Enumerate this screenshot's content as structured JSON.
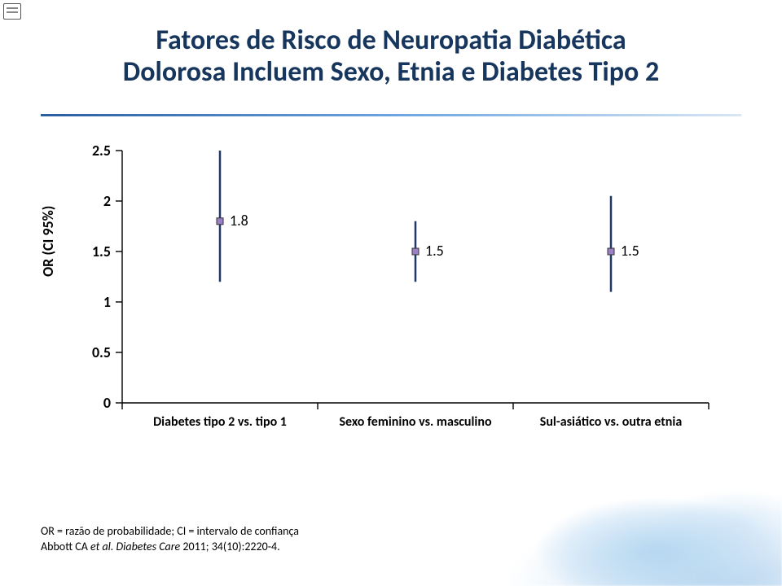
{
  "title": {
    "line1": "Fatores de Risco de Neuropatia Diabética",
    "line2": "Dolorosa Incluem Sexo, Etnia e Diabetes Tipo 2",
    "fontsize": 34,
    "color": "#17365d",
    "weight": "700"
  },
  "chart": {
    "type": "scatter-errorbar",
    "ylabel": "OR (CI 95%)",
    "ylim": [
      0,
      2.5
    ],
    "ytick_step": 0.5,
    "yticks": [
      "0",
      "0.5",
      "1",
      "1.5",
      "2",
      "2.5"
    ],
    "categories": [
      "Diabetes tipo 2 vs. tipo 1",
      "Sexo feminino vs. masculino",
      "Sul-asiático vs. outra etnia"
    ],
    "points": [
      {
        "x": 0,
        "or": 1.8,
        "lo": 1.2,
        "hi": 2.65,
        "label": "1.8"
      },
      {
        "x": 1,
        "or": 1.5,
        "lo": 1.2,
        "hi": 1.8,
        "label": "1.5"
      },
      {
        "x": 2,
        "or": 1.5,
        "lo": 1.1,
        "hi": 2.05,
        "label": "1.5"
      }
    ],
    "marker_color": "#9b7fc7",
    "marker_border": "#333333",
    "marker_size": 8,
    "error_color": "#1f3864",
    "error_width": 2.5,
    "axis_color": "#000000",
    "axis_width": 1.4,
    "tick_len": 8,
    "tick_fontsize": 18,
    "value_fontsize": 18,
    "cat_fontsize": 16,
    "background_color": "#ffffff"
  },
  "footnote": {
    "line1": "OR = razão de probabilidade; CI = intervalo de confiança",
    "line2_prefix": "Abbott CA ",
    "line2_italic": "et al. Diabetes Care",
    "line2_suffix": " 2011; 34(10):2220-4.",
    "fontsize": 14,
    "color": "#000000"
  }
}
